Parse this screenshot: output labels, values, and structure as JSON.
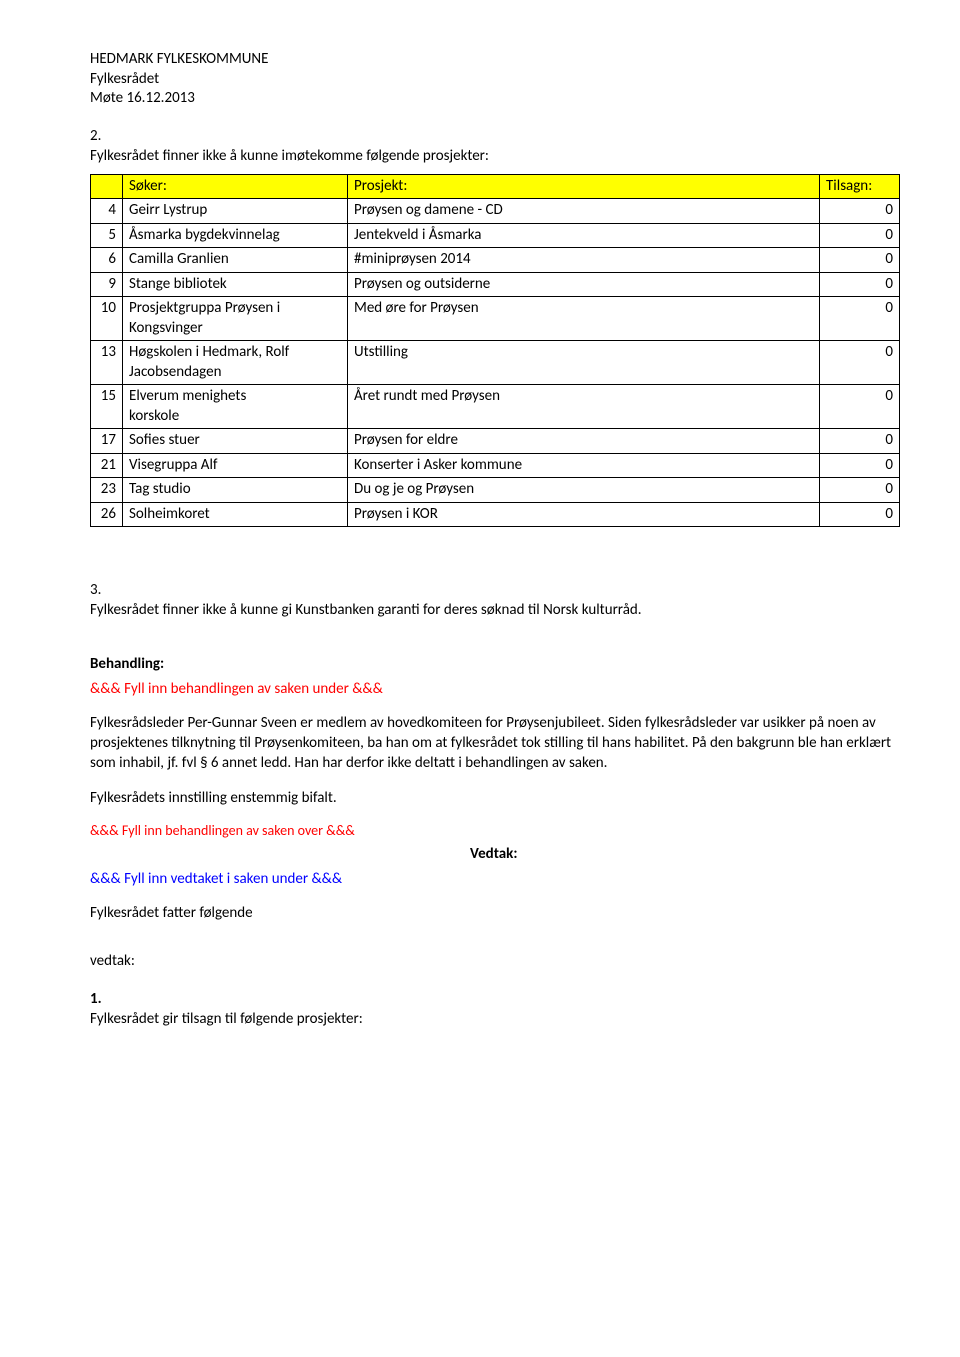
{
  "header": {
    "line1": "HEDMARK FYLKESKOMMUNE",
    "line2": "Fylkesrådet",
    "line3": "Møte 16.12.2013"
  },
  "section2": {
    "number": "2.",
    "text": "Fylkesrådet finner ikke å kunne imøtekomme følgende prosjekter:"
  },
  "table1": {
    "headers": {
      "num": "",
      "soker": "Søker:",
      "prosjekt": "Prosjekt:",
      "tilsagn": "Tilsagn:"
    },
    "rows": [
      {
        "num": "4",
        "soker": "Geirr Lystrup",
        "prosjekt": "Prøysen og damene - CD",
        "tilsagn": "0"
      },
      {
        "num": "5",
        "soker": "Åsmarka bygdekvinnelag",
        "prosjekt": "Jentekveld i Åsmarka",
        "tilsagn": "0"
      },
      {
        "num": "6",
        "soker": "Camilla Granlien",
        "prosjekt": "#miniprøysen 2014",
        "tilsagn": "0"
      },
      {
        "num": "9",
        "soker": "Stange bibliotek",
        "prosjekt": "Prøysen og outsiderne",
        "tilsagn": "0"
      },
      {
        "num": "10",
        "soker_line1": "Prosjektgruppa Prøysen i",
        "soker_line2": "Kongsvinger",
        "prosjekt": "Med øre for Prøysen",
        "tilsagn": "0"
      },
      {
        "num": "13",
        "soker_line1": "Høgskolen i Hedmark, Rolf",
        "soker_line2": "Jacobsendagen",
        "prosjekt": "Utstilling",
        "tilsagn": "0"
      },
      {
        "num": "15",
        "soker_line1": "Elverum menighets",
        "soker_line2": "korskole",
        "prosjekt": "Året rundt med Prøysen",
        "tilsagn": "0"
      },
      {
        "num": "17",
        "soker": "Sofies stuer",
        "prosjekt": "Prøysen for eldre",
        "tilsagn": "0"
      },
      {
        "num": "21",
        "soker": "Visegruppa Alf",
        "prosjekt": "Konserter i Asker kommune",
        "tilsagn": "0"
      },
      {
        "num": "23",
        "soker": "Tag studio",
        "prosjekt": "Du og je og Prøysen",
        "tilsagn": "0"
      },
      {
        "num": "26",
        "soker": "Solheimkoret",
        "prosjekt": "Prøysen i KOR",
        "tilsagn": "0"
      }
    ]
  },
  "section3": {
    "number": "3.",
    "text": "Fylkesrådet finner ikke å kunne gi Kunstbanken garanti for deres søknad til Norsk kulturråd."
  },
  "behandling": {
    "title": "Behandling:",
    "fill_under": "&&& Fyll inn behandlingen av saken under &&&",
    "para1": "Fylkesrådsleder Per-Gunnar Sveen er medlem av hovedkomiteen for Prøysenjubileet. Siden fylkesrådsleder var usikker på noen av prosjektenes tilknytning til Prøysenkomiteen, ba han om at fylkesrådet tok stilling til hans habilitet. På den bakgrunn ble han erklært som inhabil, jf. fvl § 6 annet ledd. Han har derfor ikke deltatt i behandlingen av saken.",
    "para2": "Fylkesrådets innstilling enstemmig bifalt.",
    "fill_over": "&&& Fyll inn behandlingen av saken over &&&"
  },
  "vedtak": {
    "title": "Vedtak:",
    "fill_under": "&&& Fyll inn vedtaket i saken under &&&",
    "line1": "Fylkesrådet fatter følgende",
    "line2": "vedtak:"
  },
  "section1": {
    "number": "1.",
    "text": "Fylkesrådet gir tilsagn til følgende prosjekter:"
  },
  "colors": {
    "header_bg": "#ffff00",
    "border": "#000000",
    "text": "#000000",
    "red": "#ff0000",
    "blue": "#0000ff",
    "background": "#ffffff"
  }
}
